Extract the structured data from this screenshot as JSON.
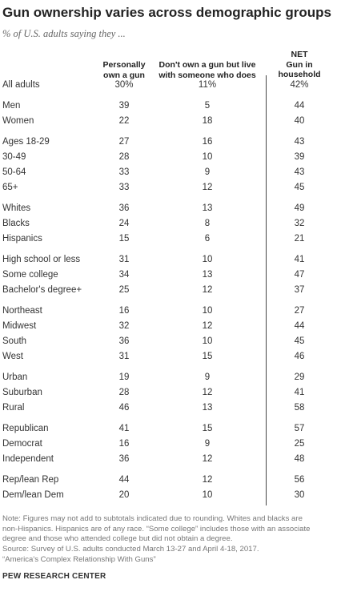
{
  "title": "Gun ownership varies across demographic groups",
  "subtitle": "% of U.S. adults saying they ...",
  "columns": {
    "c1": [
      "Personally",
      "own a gun"
    ],
    "c2": [
      "Don't own a gun but live",
      "with someone who does"
    ],
    "c3": [
      "NET",
      "Gun in",
      "household"
    ]
  },
  "note_lines": [
    "Note: Figures may not add to subtotals indicated due to rounding. Whites and blacks are",
    "non-Hispanics. Hispanics are of any race. “Some college” includes those with an associate",
    "degree and those who attended college but did not obtain a degree.",
    "Source: Survey of U.S. adults conducted March 13-27 and April 4-18, 2017.",
    "“America's Complex Relationship With Guns”"
  ],
  "brand": "PEW RESEARCH CENTER",
  "chart_data": {
    "type": "table",
    "title": "Gun ownership varies across demographic groups",
    "subtitle": "% of U.S. adults saying they ...",
    "headers": [
      "Personally own a gun",
      "Don't own a gun but live with someone who does",
      "NET Gun in household"
    ],
    "rows": [
      {
        "label": "All adults",
        "values": [
          "30%",
          "11%",
          "42%"
        ]
      },
      {
        "label": "Men",
        "values": [
          "39",
          "5",
          "44"
        ]
      },
      {
        "label": "Women",
        "values": [
          "22",
          "18",
          "40"
        ]
      },
      {
        "label": "Ages 18-29",
        "values": [
          "27",
          "16",
          "43"
        ]
      },
      {
        "label": "30-49",
        "values": [
          "28",
          "10",
          "39"
        ]
      },
      {
        "label": "50-64",
        "values": [
          "33",
          "9",
          "43"
        ]
      },
      {
        "label": "65+",
        "values": [
          "33",
          "12",
          "45"
        ]
      },
      {
        "label": "Whites",
        "values": [
          "36",
          "13",
          "49"
        ]
      },
      {
        "label": "Blacks",
        "values": [
          "24",
          "8",
          "32"
        ]
      },
      {
        "label": "Hispanics",
        "values": [
          "15",
          "6",
          "21"
        ]
      },
      {
        "label": "High school or less",
        "values": [
          "31",
          "10",
          "41"
        ]
      },
      {
        "label": "Some college",
        "values": [
          "34",
          "13",
          "47"
        ]
      },
      {
        "label": "Bachelor's degree+",
        "values": [
          "25",
          "12",
          "37"
        ]
      },
      {
        "label": "Northeast",
        "values": [
          "16",
          "10",
          "27"
        ]
      },
      {
        "label": "Midwest",
        "values": [
          "32",
          "12",
          "44"
        ]
      },
      {
        "label": "South",
        "values": [
          "36",
          "10",
          "45"
        ]
      },
      {
        "label": "West",
        "values": [
          "31",
          "15",
          "46"
        ]
      },
      {
        "label": "Urban",
        "values": [
          "19",
          "9",
          "29"
        ]
      },
      {
        "label": "Suburban",
        "values": [
          "28",
          "12",
          "41"
        ]
      },
      {
        "label": "Rural",
        "values": [
          "46",
          "13",
          "58"
        ]
      },
      {
        "label": "Republican",
        "values": [
          "41",
          "15",
          "57"
        ]
      },
      {
        "label": "Democrat",
        "values": [
          "16",
          "9",
          "25"
        ]
      },
      {
        "label": "Independent",
        "values": [
          "36",
          "12",
          "48"
        ]
      },
      {
        "label": "Rep/lean Rep",
        "values": [
          "44",
          "12",
          "56"
        ]
      },
      {
        "label": "Dem/lean Dem",
        "values": [
          "20",
          "10",
          "30"
        ]
      }
    ]
  }
}
